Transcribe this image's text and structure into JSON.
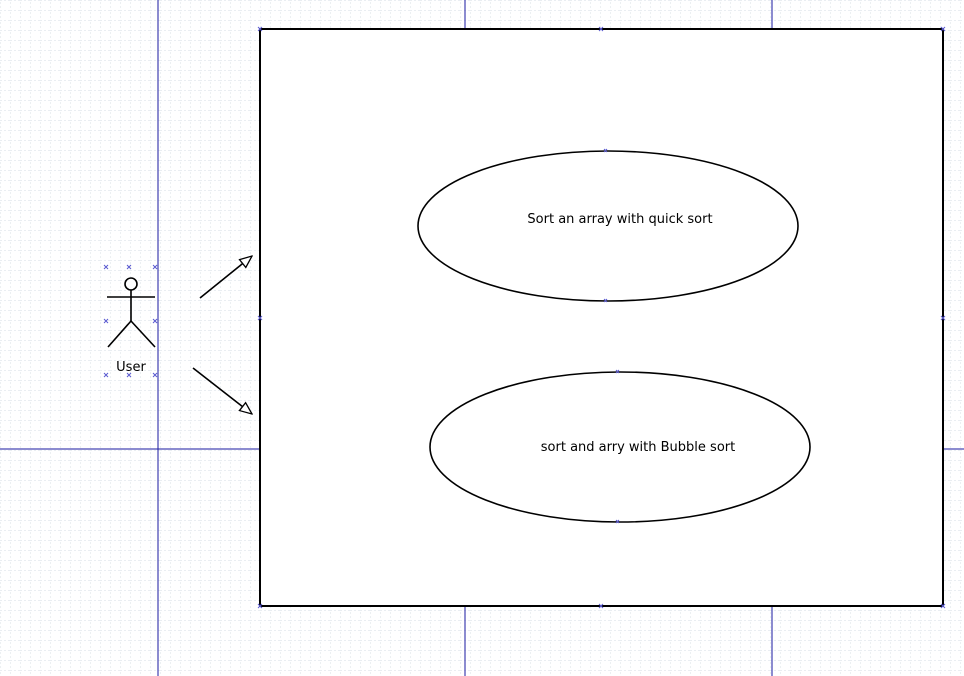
{
  "diagram": {
    "actor": {
      "label": "User"
    },
    "use_cases": [
      {
        "label": "Sort an array with quick sort"
      },
      {
        "label": "sort and arry with Bubble sort"
      }
    ]
  },
  "colors": {
    "grid_minor": "#c9d3dc",
    "grid_major": "#1a1aa0",
    "handle": "#5a5ad0",
    "stroke": "#000000"
  }
}
